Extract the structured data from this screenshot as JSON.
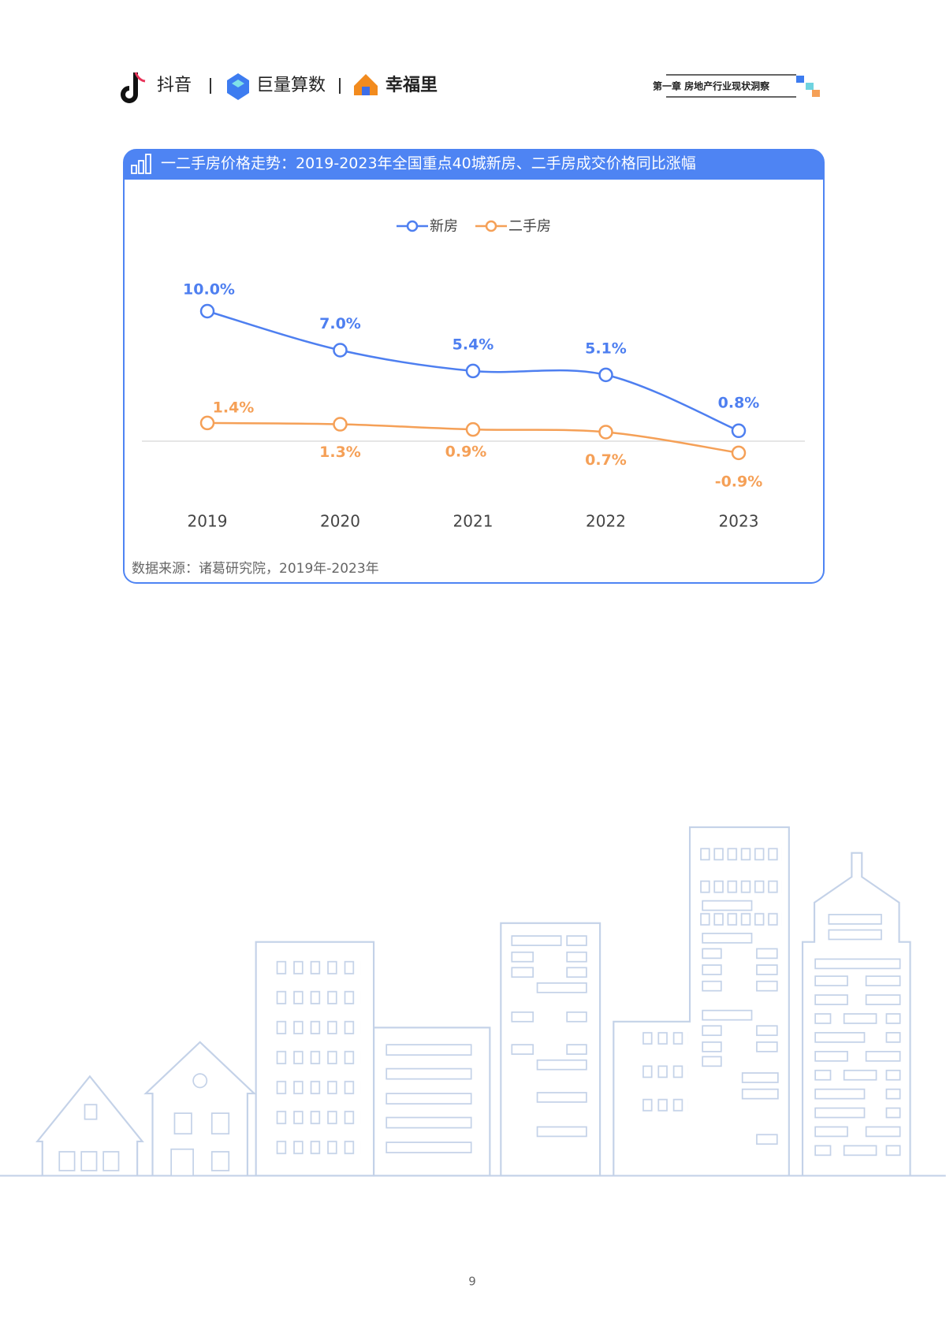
{
  "header": {
    "logos": [
      "抖音",
      "巨量算数",
      "幸福里"
    ],
    "chapter": "第一章  房地产行业现状洞察"
  },
  "chart_data": {
    "type": "line",
    "title": "一二手房价格走势：2019-2023年全国重点40城新房、二手房成交价格同比涨幅",
    "categories": [
      "2019",
      "2020",
      "2021",
      "2022",
      "2023"
    ],
    "series": [
      {
        "name": "新房",
        "color": "#4e7ff0",
        "values": [
          10.0,
          7.0,
          5.4,
          5.1,
          0.8
        ],
        "value_labels": [
          "10.0%",
          "7.0%",
          "5.4%",
          "5.1%",
          "0.8%"
        ]
      },
      {
        "name": "二手房",
        "color": "#f5a057",
        "values": [
          1.4,
          1.3,
          0.9,
          0.7,
          -0.9
        ],
        "value_labels": [
          "1.4%",
          "1.3%",
          "0.9%",
          "0.7%",
          "-0.9%"
        ]
      }
    ],
    "ylim": [
      -1,
      11
    ],
    "legend": "top"
  },
  "source": "数据来源：诸葛研究院，2019年-2023年",
  "page_number": "9"
}
